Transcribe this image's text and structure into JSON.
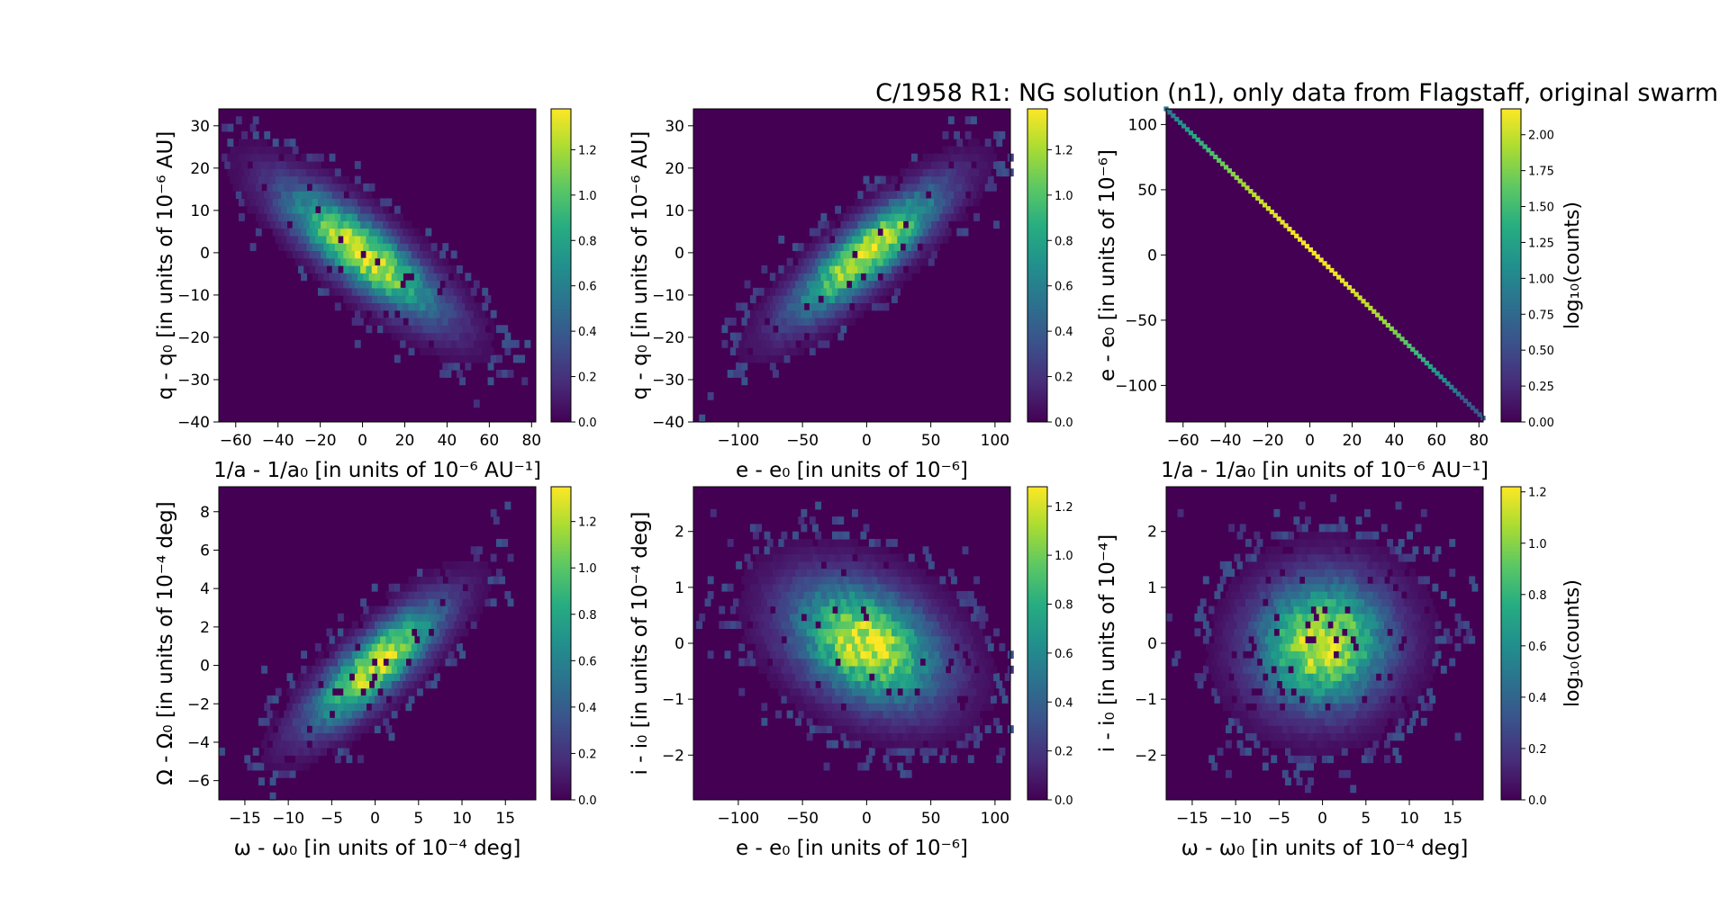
{
  "title": "C/1958 R1: NG solution (n1),  only data from Flagstaff, original swarm",
  "chart_data": [
    {
      "type": "heatmap",
      "xlabel": "1/a - 1/a₀ [in units of 10⁻⁶ AU⁻¹]",
      "ylabel": "q - q₀ [in units of 10⁻⁶ AU]",
      "xlim": [
        -68,
        82
      ],
      "ylim": [
        -40,
        34
      ],
      "xticks": [
        -60,
        -40,
        -20,
        0,
        20,
        40,
        60,
        80
      ],
      "yticks": [
        -40,
        -30,
        -20,
        -10,
        0,
        10,
        20,
        30
      ],
      "cmap": "viridis",
      "colorbar": {
        "min": 0,
        "max": 1.38,
        "ticks": [
          0.0,
          0.2,
          0.4,
          0.6,
          0.8,
          1.0,
          1.2
        ],
        "label": ""
      },
      "distribution": {
        "sx": 24,
        "sy": 10,
        "rho": -0.82
      }
    },
    {
      "type": "heatmap",
      "xlabel": "e - e₀ [in units of 10⁻⁶]",
      "ylabel": "q - q₀ [in units of 10⁻⁶ AU]",
      "xlim": [
        -135,
        112
      ],
      "ylim": [
        -40,
        34
      ],
      "xticks": [
        -100,
        -50,
        0,
        50,
        100
      ],
      "yticks": [
        -40,
        -30,
        -20,
        -10,
        0,
        10,
        20,
        30
      ],
      "cmap": "viridis",
      "colorbar": {
        "min": 0,
        "max": 1.38,
        "ticks": [
          0.0,
          0.2,
          0.4,
          0.6,
          0.8,
          1.0,
          1.2
        ],
        "label": ""
      },
      "distribution": {
        "sx": 38,
        "sy": 10,
        "rho": 0.85
      }
    },
    {
      "type": "heatmap",
      "xlabel": "1/a - 1/a₀ [in units of 10⁻⁶ AU⁻¹]",
      "ylabel": "e - e₀ [in units of 10⁻⁶]",
      "xlim": [
        -68,
        82
      ],
      "ylim": [
        -128,
        112
      ],
      "xticks": [
        -60,
        -40,
        -20,
        0,
        20,
        40,
        60,
        80
      ],
      "yticks": [
        -100,
        -50,
        0,
        50,
        100
      ],
      "cmap": "viridis",
      "colorbar": {
        "min": 0,
        "max": 2.18,
        "ticks": [
          0.0,
          0.25,
          0.5,
          0.75,
          1.0,
          1.25,
          1.5,
          1.75,
          2.0
        ],
        "label": "log₁₀(counts)"
      },
      "line": {
        "x_start": -68,
        "y_start": 112,
        "x_end": 82,
        "y_end": -125
      }
    },
    {
      "type": "heatmap",
      "xlabel": "ω - ω₀ [in units of 10⁻⁴ deg]",
      "ylabel": "Ω - Ω₀ [in units of 10⁻⁴ deg]",
      "xlim": [
        -18,
        18.5
      ],
      "ylim": [
        -7,
        9.3
      ],
      "xticks": [
        -15,
        -10,
        -5,
        0,
        5,
        10,
        15
      ],
      "yticks": [
        -6,
        -4,
        -2,
        0,
        2,
        4,
        6,
        8
      ],
      "cmap": "viridis",
      "colorbar": {
        "min": 0,
        "max": 1.35,
        "ticks": [
          0.0,
          0.2,
          0.4,
          0.6,
          0.8,
          1.0,
          1.2
        ],
        "label": ""
      },
      "distribution": {
        "sx": 5,
        "sy": 2.1,
        "rho": 0.82
      }
    },
    {
      "type": "heatmap",
      "xlabel": "e - e₀ [in units of 10⁻⁶]",
      "ylabel": "i - i₀ [in units of 10⁻⁴ deg]",
      "xlim": [
        -135,
        112
      ],
      "ylim": [
        -2.8,
        2.8
      ],
      "xticks": [
        -100,
        -50,
        0,
        50,
        100
      ],
      "yticks": [
        -2,
        -1,
        0,
        1,
        2
      ],
      "cmap": "viridis",
      "colorbar": {
        "min": 0,
        "max": 1.28,
        "ticks": [
          0.0,
          0.2,
          0.4,
          0.6,
          0.8,
          1.0,
          1.2
        ],
        "label": ""
      },
      "distribution": {
        "sx": 38,
        "sy": 0.72,
        "rho": -0.35
      }
    },
    {
      "type": "heatmap",
      "xlabel": "ω - ω₀ [in units of 10⁻⁴ deg]",
      "ylabel": "i - i₀ [in units of 10⁻⁴]",
      "xlim": [
        -18,
        18.5
      ],
      "ylim": [
        -2.8,
        2.8
      ],
      "xticks": [
        -15,
        -10,
        -5,
        0,
        5,
        10,
        15
      ],
      "yticks": [
        -2,
        -1,
        0,
        1,
        2
      ],
      "cmap": "viridis",
      "colorbar": {
        "min": 0,
        "max": 1.22,
        "ticks": [
          0.0,
          0.2,
          0.4,
          0.6,
          0.8,
          1.0,
          1.2
        ],
        "label": "log₁₀(counts)"
      },
      "distribution": {
        "sx": 5,
        "sy": 0.75,
        "rho": 0.05
      }
    }
  ]
}
